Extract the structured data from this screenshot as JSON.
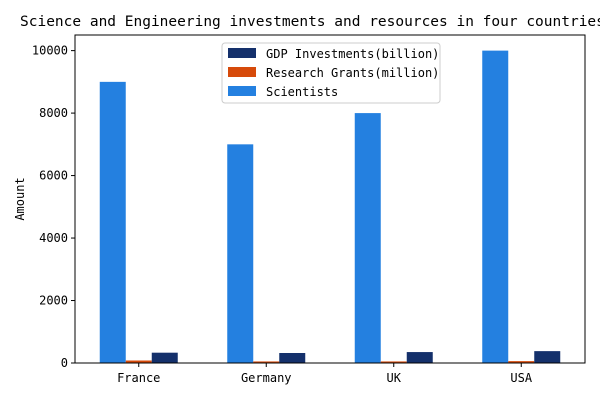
{
  "chart_data": {
    "type": "bar",
    "title": "Science and Engineering investments and resources in four countries in",
    "xlabel": "",
    "ylabel": "Amount",
    "categories": [
      "France",
      "Germany",
      "UK",
      "USA"
    ],
    "ylim": [
      0,
      10500
    ],
    "yticks": [
      0,
      2000,
      4000,
      6000,
      8000,
      10000
    ],
    "grid": false,
    "legend_position": "top-center",
    "series": [
      {
        "name": "GDP Investments(billion)",
        "color": "#14306b",
        "values": [
          330,
          320,
          350,
          380
        ]
      },
      {
        "name": "Research Grants(million)",
        "color": "#d64a0a",
        "values": [
          80,
          50,
          50,
          60
        ]
      },
      {
        "name": "Scientists",
        "color": "#2480e0",
        "values": [
          9000,
          7000,
          8000,
          10000
        ]
      }
    ]
  }
}
